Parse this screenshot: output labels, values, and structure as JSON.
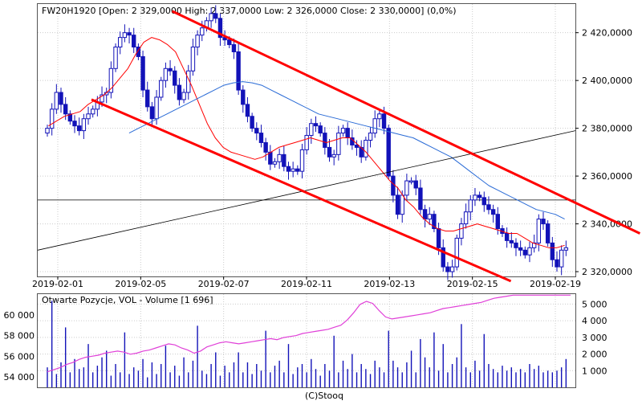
{
  "chart_data": [
    {
      "type": "candlestick",
      "title": "FW20H1920 [Open: 2 329,0000  High: 2 337,0000  Low: 2 326,0000  Close: 2 330,0000] (0,0%)",
      "ylim": [
        2318000,
        2432000
      ],
      "y_ticks": [
        2320000,
        2340000,
        2360000,
        2380000,
        2400000,
        2420000
      ],
      "y_tick_labels": [
        "2 320,0000",
        "2 340,0000",
        "2 360,0000",
        "2 380,0000",
        "2 400,0000",
        "2 420,0000"
      ],
      "x_tick_labels": [
        "2019-02-01",
        "2019-02-05",
        "2019-02-07",
        "2019-02-11",
        "2019-02-13",
        "2019-02-15",
        "2019-02-19"
      ],
      "grid": true,
      "reference_level": 2350000,
      "close_series": [
        2380000,
        2388000,
        2395000,
        2390000,
        2386000,
        2383000,
        2381000,
        2379000,
        2384000,
        2386000,
        2388000,
        2391000,
        2394000,
        2395000,
        2405000,
        2414000,
        2418000,
        2420000,
        2419000,
        2414000,
        2410000,
        2396000,
        2389000,
        2384000,
        2393000,
        2400000,
        2405000,
        2404000,
        2398000,
        2392000,
        2395000,
        2404000,
        2414000,
        2419000,
        2422000,
        2425000,
        2428000,
        2426000,
        2418000,
        2417000,
        2415000,
        2412000,
        2396000,
        2390000,
        2385000,
        2380000,
        2378000,
        2374000,
        2370000,
        2365000,
        2366000,
        2369000,
        2364000,
        2362000,
        2363000,
        2362000,
        2371000,
        2377000,
        2382000,
        2381000,
        2378000,
        2372000,
        2368000,
        2369000,
        2378000,
        2380000,
        2376000,
        2373000,
        2372000,
        2368000,
        2375000,
        2378000,
        2384000,
        2386000,
        2380000,
        2360000,
        2352000,
        2344000,
        2352000,
        2358000,
        2358000,
        2355000,
        2346000,
        2342000,
        2344000,
        2338000,
        2330000,
        2322000,
        2320000,
        2322000,
        2334000,
        2340000,
        2345000,
        2350000,
        2352000,
        2351000,
        2348000,
        2346000,
        2344000,
        2338000,
        2336000,
        2333000,
        2332000,
        2330000,
        2329000,
        2327000,
        2330000,
        2332000,
        2342000,
        2340000,
        2332000,
        2325000,
        2322000,
        2329000,
        2330000
      ],
      "series": [
        {
          "name": "",
          "color": "#ff0000",
          "values": [
            2381000,
            2383000,
            2385000,
            2386000,
            2387000,
            2390000,
            2392000,
            2394000,
            2397000,
            2401000,
            2405000,
            2411000,
            2416000,
            2418000,
            2417000,
            2415000,
            2412000,
            2405000,
            2398000,
            2390000,
            2382000,
            2376000,
            2372000,
            2370000,
            2369000,
            2368000,
            2367000,
            2368000,
            2370000,
            2372000,
            2373000,
            2374000,
            2375000,
            2376000,
            2375000,
            2374000,
            2375000,
            2376000,
            2376000,
            2373000,
            2370000,
            2366000,
            2362000,
            2358000,
            2355000,
            2350000,
            2347000,
            2343000,
            2340000,
            2338000,
            2337000,
            2337000,
            2338000,
            2339000,
            2340000,
            2339000,
            2338000,
            2337000,
            2336000,
            2336000,
            2334000,
            2332000,
            2331000,
            2330000,
            2330000,
            2331000
          ]
        },
        {
          "name": "",
          "color": "#2a6bd6",
          "values": [
            2378000,
            2380000,
            2382000,
            2384000,
            2386000,
            2388000,
            2390000,
            2392000,
            2394000,
            2396000,
            2398000,
            2399000,
            2399500,
            2399000,
            2398000,
            2396000,
            2394000,
            2392000,
            2390000,
            2388000,
            2386000,
            2385000,
            2384000,
            2383000,
            2382000,
            2381000,
            2380000,
            2379000,
            2378000,
            2377000,
            2376000,
            2374000,
            2372000,
            2370000,
            2368000,
            2365000,
            2362000,
            2359000,
            2356000,
            2354000,
            2352000,
            2350000,
            2348000,
            2346000,
            2345000,
            2344000,
            2342000
          ]
        },
        {
          "name": "",
          "color": "#000000",
          "values": [
            2329000,
            2379000
          ]
        },
        {
          "name": "",
          "color": "#ff0000",
          "values": [
            2429000,
            2336000
          ]
        },
        {
          "name": "",
          "color": "#ff0000",
          "values": [
            2392000,
            2316000
          ]
        }
      ]
    },
    {
      "type": "bar",
      "title": "Otwarte Pozycje, VOL - Volume [1 696]",
      "ylim_left": [
        53000,
        62000
      ],
      "ylim_right": [
        0,
        5600
      ],
      "y_ticks_left": [
        54000,
        56000,
        58000,
        60000
      ],
      "y_tick_labels_left": [
        "54 000",
        "56 000",
        "58 000",
        "60 000"
      ],
      "y_ticks_right": [
        1000,
        2000,
        3000,
        4000,
        5000
      ],
      "y_tick_labels_right": [
        "1 000",
        "2 000",
        "3 000",
        "4 000",
        "5 000"
      ],
      "grid": true,
      "volume": [
        1200,
        5200,
        800,
        1500,
        3600,
        900,
        1700,
        1100,
        1200,
        2600,
        900,
        1300,
        1800,
        2200,
        700,
        1400,
        900,
        3300,
        800,
        1200,
        1000,
        1700,
        600,
        1500,
        800,
        1400,
        2500,
        900,
        1300,
        700,
        1800,
        900,
        1600,
        3700,
        1000,
        800,
        1400,
        2100,
        700,
        1300,
        900,
        1500,
        2100,
        900,
        1500,
        800,
        1400,
        1000,
        3400,
        900,
        1300,
        1600,
        900,
        2600,
        800,
        1200,
        1400,
        900,
        1700,
        1100,
        700,
        1400,
        1000,
        3100,
        900,
        1600,
        1100,
        2000,
        900,
        1400,
        1100,
        800,
        1600,
        1200,
        900,
        3400,
        1600,
        1200,
        900,
        1500,
        2200,
        900,
        2900,
        1800,
        1200,
        3300,
        1000,
        2600,
        900,
        1400,
        1800,
        3800,
        1200,
        900,
        1600,
        1000,
        3200,
        1400,
        1100,
        900,
        1300,
        1000,
        1200,
        900,
        1100,
        900,
        1400,
        1100,
        1300,
        900,
        1000,
        900,
        1000,
        1200,
        1700
      ],
      "open_interest": [
        54500,
        54700,
        54900,
        55200,
        55400,
        55700,
        55900,
        56000,
        56100,
        56300,
        56400,
        56500,
        56400,
        56200,
        56300,
        56500,
        56600,
        56800,
        57000,
        57200,
        57100,
        56800,
        56600,
        56300,
        56500,
        56900,
        57100,
        57300,
        57400,
        57300,
        57200,
        57300,
        57400,
        57500,
        57600,
        57700,
        57600,
        57800,
        57900,
        58000,
        58200,
        58300,
        58400,
        58500,
        58600,
        58800,
        59000,
        59500,
        60200,
        61000,
        61300,
        61100,
        60400,
        59800,
        59600,
        59700,
        59800,
        59900,
        60000,
        60100,
        60200,
        60400,
        60600,
        60700,
        60800,
        60900,
        61000,
        61100,
        61200,
        61400,
        61600,
        61700,
        61800,
        61900,
        62000,
        62200,
        62400,
        62500,
        62600,
        62700,
        62800,
        62900,
        63000
      ],
      "x_label": "(C)Stooq"
    }
  ],
  "colors": {
    "candle": "#1212b8",
    "sma_fast": "#ff0000",
    "sma_slow": "#2a6bd6",
    "channel": "#ff0000",
    "trend": "#000000",
    "open_interest": "#e040d8",
    "volume": "#1212b8",
    "grid": "#cccccc"
  }
}
